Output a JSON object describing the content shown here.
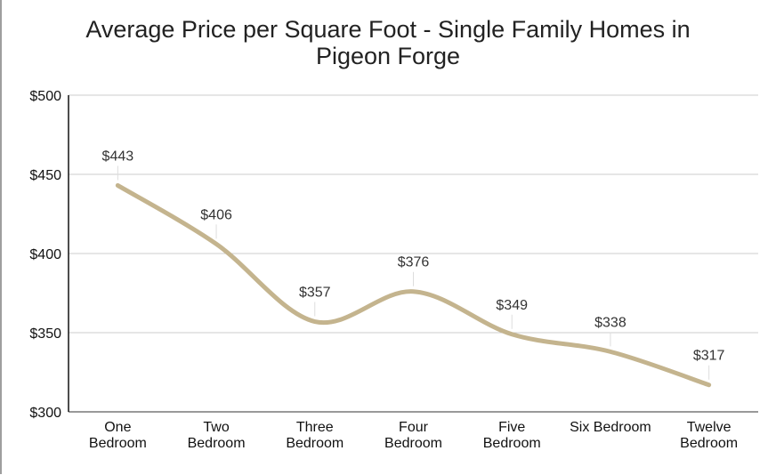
{
  "chart_data": {
    "type": "line",
    "title": "Average Price per Square Foot - Single Family Homes in Pigeon Forge",
    "title_lines": [
      "Average Price per Square Foot - Single Family Homes in",
      "Pigeon Forge"
    ],
    "categories": [
      [
        "One",
        "Bedroom"
      ],
      [
        "Two",
        "Bedroom"
      ],
      [
        "Three",
        "Bedroom"
      ],
      [
        "Four",
        "Bedroom"
      ],
      [
        "Five",
        "Bedroom"
      ],
      [
        "Six Bedroom"
      ],
      [
        "Twelve",
        "Bedroom"
      ]
    ],
    "values": [
      443,
      406,
      357,
      376,
      349,
      338,
      317
    ],
    "data_labels": [
      "$443",
      "$406",
      "$357",
      "$376",
      "$349",
      "$338",
      "$317"
    ],
    "ylim": [
      300,
      500
    ],
    "yticks": [
      300,
      350,
      400,
      450,
      500
    ],
    "ytick_labels": [
      "$300",
      "$350",
      "$400",
      "$450",
      "$500"
    ],
    "xlabel": "",
    "ylabel": "",
    "grid": true,
    "smooth": true,
    "line_color": "#c4b48e"
  }
}
